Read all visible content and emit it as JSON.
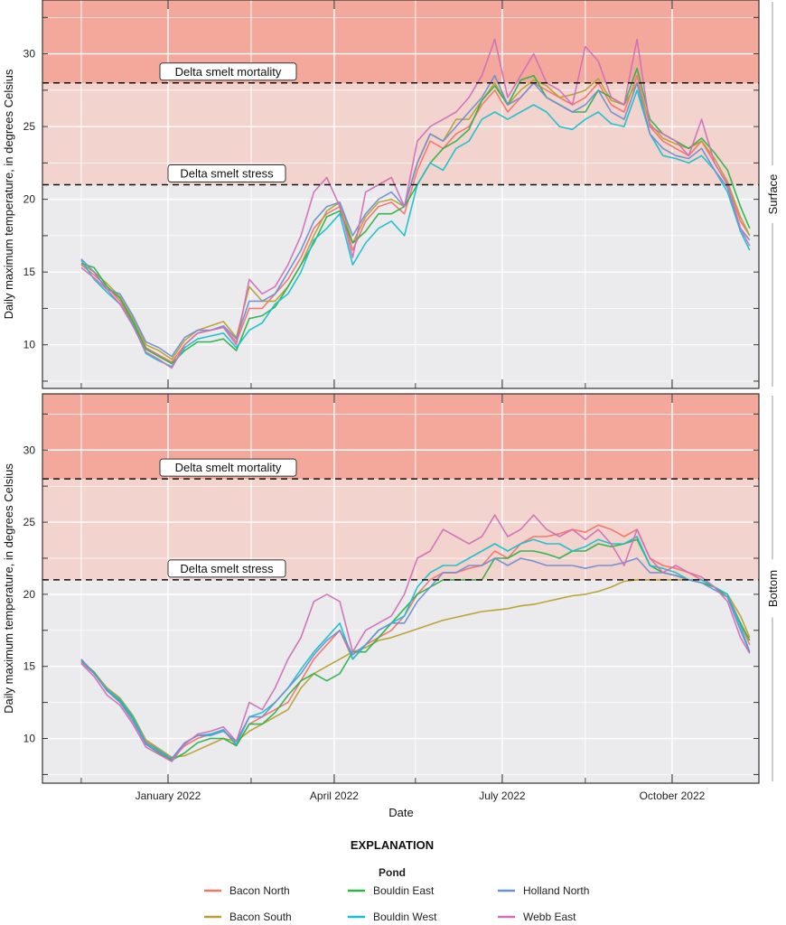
{
  "chart_data": {
    "type": "line",
    "xlabel": "Date",
    "ylabel": "Daily maximum temperature, in degrees Celsius",
    "x_ticks": [
      "January 2022",
      "April 2022",
      "July 2022",
      "October 2022"
    ],
    "xlim": [
      "2021-10-25",
      "2022-11-17"
    ],
    "grid": true,
    "legend": {
      "title": "EXPLANATION",
      "subtitle": "Pond",
      "placement": "bottom"
    },
    "thresholds": [
      {
        "label": "Delta smelt mortality",
        "value": 28,
        "color": "#f4a89c"
      },
      {
        "label": "Delta smelt stress",
        "value": 21,
        "color": "#f2d3ce"
      }
    ],
    "background_color": "#ebebed",
    "colors": {
      "Bacon North": "#f4736b",
      "Bacon South": "#b8a032",
      "Bouldin East": "#2cb34a",
      "Bouldin West": "#18c0cc",
      "Holland North": "#6f8fd0",
      "Webb East": "#d070b8"
    },
    "legend_order": [
      "Bacon North",
      "Bouldin East",
      "Holland North",
      "Bacon South",
      "Bouldin West",
      "Webb East"
    ],
    "x": [
      "2021-11-15",
      "2021-11-22",
      "2021-11-29",
      "2021-12-06",
      "2021-12-13",
      "2021-12-20",
      "2021-12-27",
      "2022-01-03",
      "2022-01-10",
      "2022-01-17",
      "2022-01-24",
      "2022-01-31",
      "2022-02-07",
      "2022-02-14",
      "2022-02-21",
      "2022-02-28",
      "2022-03-07",
      "2022-03-14",
      "2022-03-21",
      "2022-03-28",
      "2022-04-04",
      "2022-04-11",
      "2022-04-18",
      "2022-04-25",
      "2022-05-02",
      "2022-05-09",
      "2022-05-16",
      "2022-05-23",
      "2022-05-30",
      "2022-06-06",
      "2022-06-13",
      "2022-06-20",
      "2022-06-27",
      "2022-07-04",
      "2022-07-11",
      "2022-07-18",
      "2022-07-25",
      "2022-08-01",
      "2022-08-08",
      "2022-08-15",
      "2022-08-22",
      "2022-08-29",
      "2022-09-05",
      "2022-09-12",
      "2022-09-19",
      "2022-09-26",
      "2022-10-03",
      "2022-10-10",
      "2022-10-17",
      "2022-10-24",
      "2022-10-31",
      "2022-11-07",
      "2022-11-12"
    ],
    "panels": [
      {
        "label": "Surface",
        "yticks": [
          10,
          15,
          20,
          25,
          30
        ],
        "ylim": [
          7,
          33.7
        ],
        "series": [
          {
            "name": "Bacon North",
            "values": [
              15.5,
              14.8,
              14.0,
              13.0,
              11.5,
              9.8,
              9.3,
              8.8,
              10.0,
              10.8,
              11.0,
              11.2,
              10.2,
              12.5,
              12.5,
              13.5,
              14.5,
              16.0,
              18.0,
              19.0,
              19.5,
              16.5,
              18.5,
              19.5,
              19.8,
              19.0,
              22.0,
              24.0,
              23.5,
              24.5,
              25.0,
              26.5,
              27.5,
              26.0,
              27.0,
              28.0,
              27.5,
              27.0,
              26.5,
              27.0,
              28.0,
              26.5,
              26.0,
              28.5,
              25.0,
              24.0,
              23.5,
              23.0,
              24.0,
              22.5,
              21.0,
              18.5,
              17.5
            ]
          },
          {
            "name": "Bacon South",
            "values": [
              15.6,
              15.0,
              14.2,
              13.3,
              11.8,
              10.0,
              9.6,
              9.0,
              10.3,
              11.0,
              11.3,
              11.6,
              10.5,
              14.0,
              13.0,
              13.0,
              14.0,
              15.5,
              17.5,
              19.2,
              19.8,
              17.0,
              18.8,
              19.8,
              20.0,
              19.5,
              22.5,
              24.5,
              24.0,
              25.5,
              25.5,
              26.8,
              28.0,
              26.5,
              27.5,
              28.2,
              27.8,
              27.0,
              27.2,
              27.5,
              28.3,
              26.8,
              26.5,
              28.0,
              25.2,
              24.2,
              23.8,
              23.5,
              24.0,
              22.8,
              21.2,
              18.8,
              17.5
            ]
          },
          {
            "name": "Bouldin East",
            "values": [
              15.6,
              15.3,
              14.0,
              13.2,
              11.6,
              9.7,
              9.2,
              8.7,
              9.6,
              10.2,
              10.2,
              10.4,
              9.6,
              11.8,
              12.0,
              12.6,
              14.0,
              15.5,
              17.0,
              18.8,
              19.2,
              17.0,
              17.8,
              19.0,
              19.0,
              19.5,
              21.0,
              22.5,
              23.5,
              24.0,
              24.8,
              26.8,
              27.8,
              26.5,
              28.2,
              28.5,
              27.0,
              26.5,
              26.0,
              26.0,
              27.5,
              27.0,
              26.5,
              29.0,
              25.5,
              24.5,
              24.0,
              23.5,
              24.2,
              23.2,
              22.0,
              19.5,
              18.0
            ]
          },
          {
            "name": "Bouldin West",
            "values": [
              15.8,
              14.5,
              13.6,
              12.8,
              11.4,
              9.4,
              8.9,
              8.5,
              9.8,
              10.4,
              10.6,
              10.8,
              9.8,
              11.0,
              11.5,
              12.8,
              13.5,
              15.0,
              17.2,
              18.0,
              19.0,
              15.5,
              17.0,
              18.0,
              18.5,
              17.5,
              21.0,
              22.5,
              22.0,
              23.5,
              24.0,
              25.5,
              26.0,
              25.5,
              26.0,
              26.5,
              26.0,
              25.0,
              24.8,
              25.5,
              26.0,
              25.2,
              25.0,
              27.5,
              24.5,
              23.0,
              22.8,
              22.5,
              23.0,
              22.0,
              20.5,
              17.8,
              16.5
            ]
          },
          {
            "name": "Holland North",
            "values": [
              15.9,
              15.0,
              13.8,
              13.5,
              12.0,
              10.2,
              9.8,
              9.2,
              10.5,
              11.0,
              11.0,
              11.3,
              10.4,
              13.0,
              13.0,
              13.5,
              15.0,
              16.5,
              18.5,
              19.5,
              19.8,
              17.5,
              19.0,
              20.0,
              20.5,
              19.5,
              22.5,
              24.5,
              24.0,
              25.0,
              26.0,
              27.0,
              28.5,
              26.5,
              27.0,
              28.0,
              27.0,
              26.5,
              26.0,
              26.5,
              27.5,
              26.0,
              25.5,
              28.0,
              24.5,
              23.5,
              23.0,
              22.8,
              23.5,
              22.0,
              20.8,
              18.0,
              17.2
            ]
          },
          {
            "name": "Webb East",
            "values": [
              15.3,
              14.6,
              13.8,
              12.8,
              11.3,
              9.5,
              9.0,
              8.4,
              10.0,
              10.8,
              11.0,
              11.2,
              10.0,
              14.5,
              13.5,
              14.0,
              15.5,
              17.5,
              20.5,
              21.5,
              19.5,
              16.0,
              20.5,
              21.0,
              21.5,
              19.5,
              24.0,
              25.0,
              25.5,
              26.0,
              27.0,
              28.5,
              31.0,
              27.0,
              28.5,
              30.0,
              28.0,
              27.5,
              26.5,
              30.5,
              29.5,
              27.0,
              26.5,
              31.0,
              25.0,
              24.5,
              24.0,
              23.0,
              25.5,
              22.5,
              21.0,
              18.0,
              16.8
            ]
          }
        ]
      },
      {
        "label": "Bottom",
        "yticks": [
          10,
          15,
          20,
          25,
          30
        ],
        "ylim": [
          6.9,
          33.9
        ],
        "series": [
          {
            "name": "Bacon North",
            "values": [
              15.3,
              14.5,
              13.5,
              12.8,
              11.5,
              9.8,
              9.2,
              8.6,
              9.5,
              10.0,
              10.3,
              10.6,
              9.5,
              11.0,
              11.5,
              12.0,
              12.5,
              14.0,
              15.5,
              16.5,
              17.5,
              15.5,
              16.5,
              17.0,
              17.5,
              18.5,
              20.0,
              21.0,
              21.5,
              21.5,
              21.8,
              22.0,
              23.0,
              22.5,
              23.5,
              24.0,
              24.0,
              24.2,
              24.5,
              24.3,
              24.8,
              24.5,
              24.0,
              24.5,
              22.5,
              22.0,
              21.8,
              21.5,
              21.0,
              20.5,
              20.0,
              18.0,
              16.5
            ]
          },
          {
            "name": "Bacon South",
            "values": [
              15.4,
              14.6,
              13.5,
              12.8,
              11.6,
              9.9,
              9.3,
              8.7,
              8.8,
              9.2,
              9.6,
              10.0,
              9.8,
              10.5,
              11.0,
              11.5,
              12.0,
              13.5,
              14.5,
              15.0,
              15.5,
              16.0,
              16.3,
              16.8,
              17.0,
              17.3,
              17.6,
              17.9,
              18.2,
              18.4,
              18.6,
              18.8,
              18.9,
              19.0,
              19.2,
              19.3,
              19.5,
              19.7,
              19.9,
              20.0,
              20.2,
              20.5,
              20.9,
              21.0,
              21.0,
              21.0,
              21.0,
              21.0,
              20.8,
              20.5,
              20.0,
              18.5,
              17.0
            ]
          },
          {
            "name": "Bouldin East",
            "values": [
              15.4,
              14.6,
              13.3,
              12.6,
              11.4,
              9.6,
              9.0,
              8.5,
              9.0,
              9.7,
              10.0,
              10.0,
              9.5,
              11.0,
              11.0,
              11.8,
              13.0,
              14.0,
              14.5,
              14.0,
              14.5,
              16.0,
              16.0,
              17.0,
              18.0,
              19.0,
              20.0,
              20.5,
              21.0,
              21.0,
              21.0,
              21.0,
              22.5,
              22.5,
              23.0,
              23.0,
              22.8,
              22.5,
              23.0,
              23.0,
              23.5,
              23.3,
              23.5,
              23.8,
              22.0,
              21.5,
              21.3,
              21.0,
              20.8,
              20.5,
              19.8,
              18.0,
              16.8
            ]
          },
          {
            "name": "Bouldin West",
            "values": [
              15.4,
              14.5,
              13.4,
              12.7,
              11.5,
              9.7,
              9.2,
              8.6,
              9.7,
              10.2,
              10.3,
              10.6,
              9.6,
              11.5,
              11.8,
              12.5,
              13.5,
              14.8,
              16.0,
              17.0,
              18.0,
              15.5,
              16.5,
              17.5,
              18.0,
              18.5,
              20.5,
              21.5,
              22.0,
              22.0,
              22.5,
              23.0,
              23.5,
              23.0,
              23.5,
              23.8,
              23.5,
              23.5,
              23.0,
              23.3,
              23.8,
              23.5,
              23.5,
              24.0,
              22.0,
              21.8,
              21.5,
              21.0,
              21.0,
              20.5,
              20.0,
              17.8,
              16.0
            ]
          },
          {
            "name": "Holland North",
            "values": [
              15.5,
              14.5,
              13.3,
              12.5,
              11.2,
              9.6,
              9.1,
              8.6,
              9.7,
              10.2,
              10.2,
              10.5,
              9.8,
              11.5,
              11.5,
              12.5,
              13.5,
              14.5,
              15.8,
              16.8,
              17.5,
              15.8,
              16.5,
              17.5,
              18.0,
              18.0,
              19.5,
              20.5,
              21.5,
              21.5,
              22.0,
              22.0,
              22.5,
              22.0,
              22.5,
              22.3,
              22.0,
              22.0,
              22.0,
              21.8,
              22.0,
              22.0,
              22.2,
              22.5,
              21.5,
              21.5,
              21.3,
              21.0,
              20.8,
              20.3,
              19.8,
              17.5,
              16.0
            ]
          },
          {
            "name": "Webb East",
            "values": [
              15.2,
              14.3,
              13.0,
              12.3,
              11.0,
              9.4,
              8.9,
              8.4,
              9.6,
              10.3,
              10.5,
              10.8,
              9.8,
              12.5,
              12.0,
              13.5,
              15.5,
              17.0,
              19.5,
              20.0,
              19.5,
              16.0,
              17.5,
              18.0,
              18.5,
              20.0,
              22.5,
              23.0,
              24.5,
              24.0,
              23.5,
              24.0,
              25.5,
              24.0,
              24.5,
              25.5,
              24.5,
              24.0,
              24.5,
              23.8,
              24.5,
              23.5,
              22.0,
              24.5,
              22.5,
              21.5,
              22.0,
              21.5,
              21.2,
              20.5,
              19.5,
              17.0,
              15.9
            ]
          }
        ]
      }
    ]
  }
}
